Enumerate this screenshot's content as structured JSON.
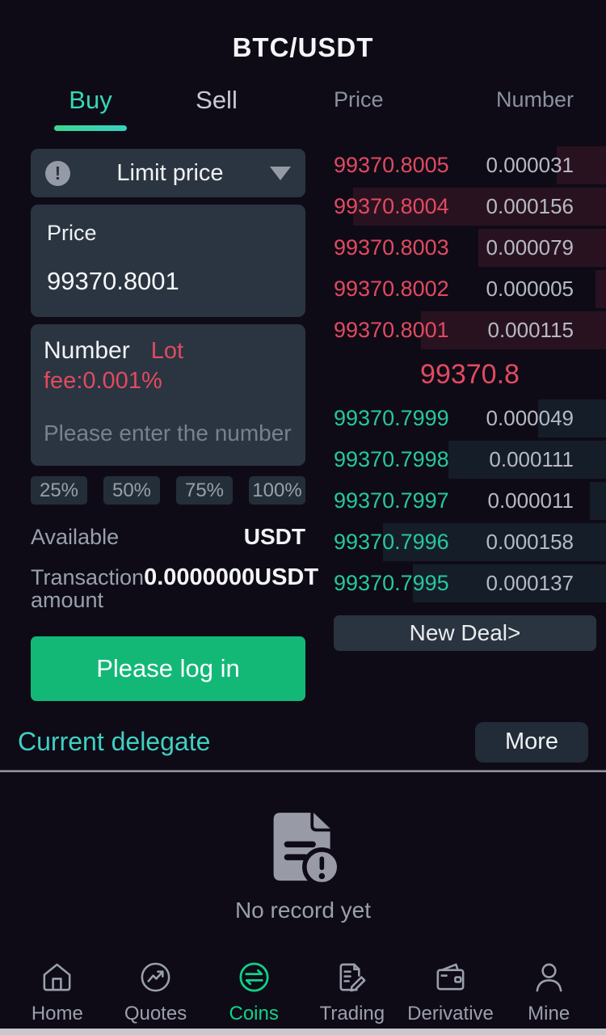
{
  "header": {
    "title": "BTC/USDT"
  },
  "trade_panel": {
    "tabs": [
      {
        "label": "Buy",
        "active": true
      },
      {
        "label": "Sell",
        "active": false
      }
    ],
    "order_type": {
      "label": "Limit price",
      "warn_icon": "exclamation-circle"
    },
    "price_field": {
      "label": "Price",
      "value": "99370.8001"
    },
    "amount_field": {
      "label": "Number",
      "unit": "Lot",
      "fee": "fee:0.001%",
      "placeholder": "Please enter the number"
    },
    "percent_buttons": [
      "25%",
      "50%",
      "75%",
      "100%"
    ],
    "available": {
      "label": "Available",
      "value": "USDT"
    },
    "transaction": {
      "label": "Transaction amount",
      "value": "0.0000000USDT"
    },
    "login_button": "Please log in"
  },
  "order_book": {
    "headers": {
      "price": "Price",
      "number": "Number"
    },
    "asks": [
      {
        "price": "99370.8005",
        "number": "0.000031",
        "depth": 0.18
      },
      {
        "price": "99370.8004",
        "number": "0.000156",
        "depth": 0.93
      },
      {
        "price": "99370.8003",
        "number": "0.000079",
        "depth": 0.47
      },
      {
        "price": "99370.8002",
        "number": "0.000005",
        "depth": 0.04
      },
      {
        "price": "99370.8001",
        "number": "0.000115",
        "depth": 0.68
      }
    ],
    "last_price": "99370.8",
    "bids": [
      {
        "price": "99370.7999",
        "number": "0.000049",
        "depth": 0.25
      },
      {
        "price": "99370.7998",
        "number": "0.000111",
        "depth": 0.58
      },
      {
        "price": "99370.7997",
        "number": "0.000011",
        "depth": 0.06
      },
      {
        "price": "99370.7996",
        "number": "0.000158",
        "depth": 0.82
      },
      {
        "price": "99370.7995",
        "number": "0.000137",
        "depth": 0.71
      }
    ],
    "new_deal_button": "New Deal>"
  },
  "delegate": {
    "title": "Current delegate",
    "more_button": "More",
    "empty_text": "No record yet",
    "empty_icon": "document-alert-icon"
  },
  "nav": {
    "items": [
      {
        "label": "Home",
        "icon": "home-icon",
        "active": false
      },
      {
        "label": "Quotes",
        "icon": "trend-circle-icon",
        "active": false
      },
      {
        "label": "Coins",
        "icon": "exchange-arrows-icon",
        "active": true
      },
      {
        "label": "Trading",
        "icon": "order-pencil-icon",
        "active": false
      },
      {
        "label": "Derivative",
        "icon": "wallet-icon",
        "active": false
      },
      {
        "label": "Mine",
        "icon": "person-icon",
        "active": false
      }
    ]
  },
  "colors": {
    "bg": "#0e0b17",
    "box": "#2a3541",
    "teal": "#35d9b4",
    "teal2": "#3fd0c2",
    "red": "#e24a5f",
    "green": "#27c79c",
    "green-btn": "#13b877",
    "nav-green": "#10d287"
  }
}
